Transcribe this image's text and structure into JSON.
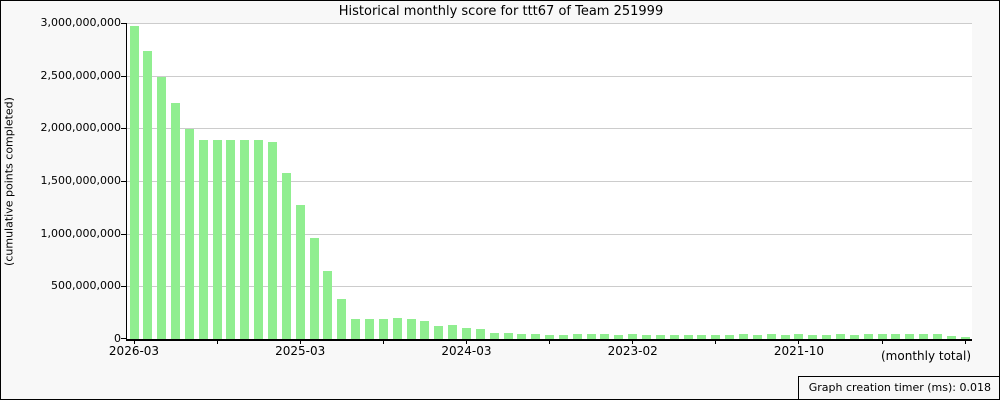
{
  "title": "Historical monthly score for ttt67 of Team 251999",
  "y_axis": {
    "label": "(cumulative points completed)",
    "tick_labels": [
      "3,000,000,000",
      "2,500,000,000",
      "2,000,000,000",
      "1,500,000,000",
      "1,000,000,000",
      "500,000,000",
      "0"
    ]
  },
  "x_axis": {
    "note": "(monthly total)",
    "minor_tick_every": 6,
    "labels": [
      {
        "index": 0,
        "text": "2026-03"
      },
      {
        "index": 12,
        "text": "2025-03"
      },
      {
        "index": 24,
        "text": "2024-03"
      },
      {
        "index": 36,
        "text": "2023-02"
      },
      {
        "index": 48,
        "text": "2021-10"
      }
    ]
  },
  "footer": {
    "timer_text": "Graph creation timer (ms): 0.018"
  },
  "colors": {
    "bar": "#90EE90",
    "grid": "#cccccc",
    "plot_bg": "#ffffff",
    "page_bg": "#f8f8f8",
    "axis": "#000000"
  },
  "chart_data": {
    "type": "bar",
    "title": "Historical monthly score for ttt67 of Team 251999",
    "xlabel": "(monthly total)",
    "ylabel": "(cumulative points completed)",
    "ylim": [
      0,
      3000000000
    ],
    "grid": "horizontal",
    "bar_order": "newest month on left, oldest on right",
    "x_tick_labels": [
      "2026-03",
      "2025-03",
      "2024-03",
      "2023-02",
      "2021-10"
    ],
    "values": [
      2970000000,
      2730000000,
      2490000000,
      2240000000,
      1990000000,
      1890000000,
      1890000000,
      1890000000,
      1890000000,
      1890000000,
      1870000000,
      1580000000,
      1270000000,
      960000000,
      650000000,
      380000000,
      190000000,
      190000000,
      190000000,
      195000000,
      190000000,
      168000000,
      121000000,
      130000000,
      100000000,
      92000000,
      60000000,
      55000000,
      48000000,
      45000000,
      42000000,
      42000000,
      45000000,
      45000000,
      45000000,
      42000000,
      45000000,
      42000000,
      40000000,
      42000000,
      40000000,
      42000000,
      40000000,
      42000000,
      45000000,
      42000000,
      45000000,
      42000000,
      45000000,
      42000000,
      42000000,
      45000000,
      42000000,
      45000000,
      45000000,
      45000000,
      45000000,
      45000000,
      45000000,
      28000000,
      16000000
    ]
  }
}
